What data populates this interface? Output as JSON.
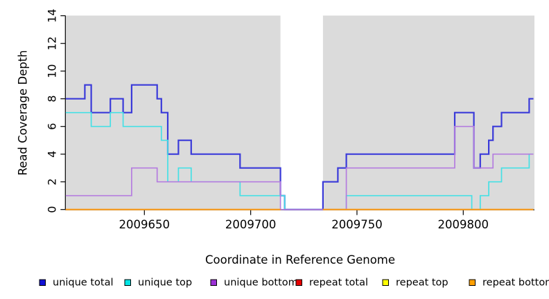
{
  "chart_data": {
    "type": "line",
    "subtype": "step",
    "title": "",
    "xlabel": "Coordinate in Reference Genome",
    "ylabel": "Read Coverage Depth",
    "xlim": [
      2009613,
      2009833
    ],
    "ylim": [
      0,
      14
    ],
    "x_ticks": [
      2009650,
      2009700,
      2009750,
      2009800
    ],
    "y_ticks": [
      0,
      2,
      4,
      6,
      8,
      10,
      12,
      14
    ],
    "grid": false,
    "panel_bg": "#DBDBDB",
    "page_bg": "#FFFFFF",
    "gap_region": {
      "x_start": 2009714,
      "x_end": 2009734,
      "color": "#FFFFFF"
    },
    "legend_position": "bottom",
    "series": [
      {
        "name": "unique total",
        "line_color": "#3A3AD9",
        "swatch_color": "#1111D6",
        "line_width": 2.2,
        "break_in_gap": false,
        "steps": [
          [
            2009613,
            8
          ],
          [
            2009622,
            9
          ],
          [
            2009625,
            7
          ],
          [
            2009634,
            8
          ],
          [
            2009640,
            7
          ],
          [
            2009644,
            9
          ],
          [
            2009656,
            8
          ],
          [
            2009658,
            7
          ],
          [
            2009661,
            4
          ],
          [
            2009666,
            5
          ],
          [
            2009672,
            4
          ],
          [
            2009695,
            3
          ],
          [
            2009714,
            1
          ],
          [
            2009716,
            0
          ],
          [
            2009734,
            2
          ],
          [
            2009741,
            3
          ],
          [
            2009745,
            4
          ],
          [
            2009796,
            7
          ],
          [
            2009805,
            3
          ],
          [
            2009808,
            4
          ],
          [
            2009812,
            5
          ],
          [
            2009814,
            6
          ],
          [
            2009818,
            7
          ],
          [
            2009831,
            8
          ]
        ]
      },
      {
        "name": "unique top",
        "line_color": "#45E0E5",
        "swatch_color": "#00E5E5",
        "line_width": 1.7,
        "break_in_gap": false,
        "steps": [
          [
            2009613,
            7
          ],
          [
            2009625,
            6
          ],
          [
            2009634,
            7
          ],
          [
            2009640,
            6
          ],
          [
            2009658,
            5
          ],
          [
            2009661,
            2
          ],
          [
            2009666,
            3
          ],
          [
            2009672,
            2
          ],
          [
            2009695,
            1
          ],
          [
            2009716,
            0
          ],
          [
            2009745,
            1
          ],
          [
            2009804,
            0
          ],
          [
            2009808,
            1
          ],
          [
            2009812,
            2
          ],
          [
            2009818,
            3
          ],
          [
            2009831,
            4
          ]
        ]
      },
      {
        "name": "unique bottom",
        "line_color": "#B47CDF",
        "swatch_color": "#9B30D5",
        "line_width": 1.7,
        "break_in_gap": false,
        "steps": [
          [
            2009613,
            1
          ],
          [
            2009644,
            3
          ],
          [
            2009656,
            2
          ],
          [
            2009714,
            0
          ],
          [
            2009745,
            3
          ],
          [
            2009796,
            6
          ],
          [
            2009805,
            3
          ],
          [
            2009814,
            4
          ]
        ]
      },
      {
        "name": "repeat total",
        "line_color": "#DD2222",
        "swatch_color": "#E60000",
        "line_width": 1.7,
        "break_in_gap": true,
        "steps": [
          [
            2009613,
            0
          ]
        ]
      },
      {
        "name": "repeat top",
        "line_color": "#F2F23C",
        "swatch_color": "#FFFF00",
        "line_width": 1.7,
        "break_in_gap": true,
        "steps": [
          [
            2009613,
            0
          ]
        ]
      },
      {
        "name": "repeat bottom",
        "line_color": "#FF9D1A",
        "swatch_color": "#FFA000",
        "line_width": 2.0,
        "break_in_gap": true,
        "steps": [
          [
            2009613,
            0
          ]
        ]
      }
    ],
    "legend": [
      {
        "label": "unique total",
        "color": "#1111D6"
      },
      {
        "label": "unique top",
        "color": "#00E5E5"
      },
      {
        "label": "unique bottom",
        "color": "#9B30D5"
      },
      {
        "label": "repeat total",
        "color": "#E60000"
      },
      {
        "label": "repeat top",
        "color": "#FFFF00"
      },
      {
        "label": "repeat bottom",
        "color": "#FFA000"
      }
    ]
  }
}
